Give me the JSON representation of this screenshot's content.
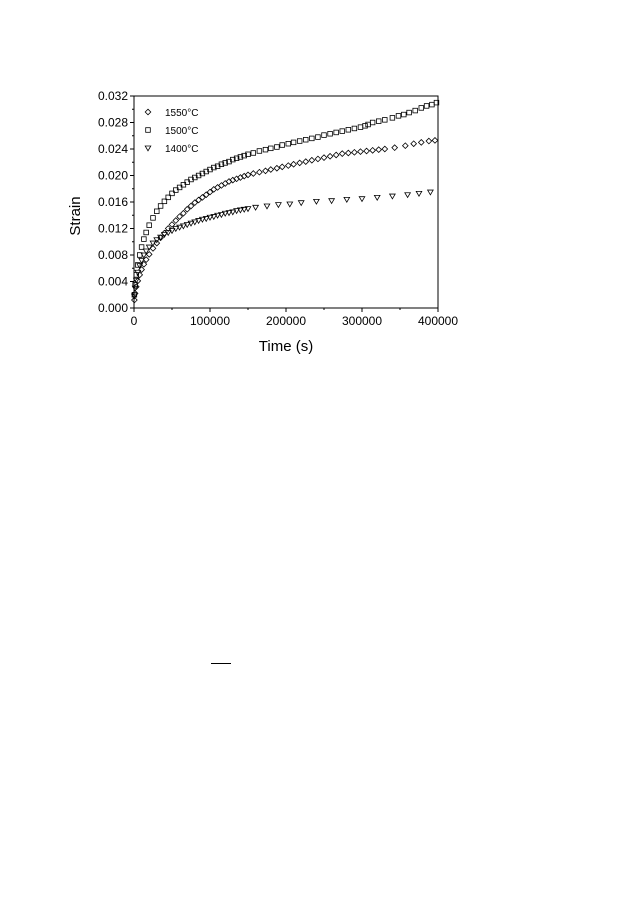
{
  "chart_data": {
    "type": "scatter",
    "title": "",
    "xlabel": "Time (s)",
    "ylabel": "Strain",
    "xlim": [
      0,
      400000
    ],
    "ylim": [
      0,
      0.032
    ],
    "x_ticks": [
      0,
      100000,
      200000,
      300000,
      400000
    ],
    "x_tick_labels": [
      "0",
      "100000",
      "200000",
      "300000",
      "400000"
    ],
    "y_ticks": [
      0,
      0.004,
      0.008,
      0.012,
      0.016,
      0.02,
      0.024,
      0.028,
      0.032
    ],
    "y_tick_labels": [
      "0.000",
      "0.004",
      "0.008",
      "0.012",
      "0.016",
      "0.020",
      "0.024",
      "0.028",
      "0.032"
    ],
    "grid": false,
    "legend_position": "top-left",
    "series": [
      {
        "name": "1550°C",
        "marker": "diamond",
        "points": [
          [
            500,
            0.0012
          ],
          [
            1500,
            0.0022
          ],
          [
            3000,
            0.0032
          ],
          [
            5000,
            0.0041
          ],
          [
            7500,
            0.005
          ],
          [
            10000,
            0.0058
          ],
          [
            13000,
            0.0066
          ],
          [
            16000,
            0.0073
          ],
          [
            20000,
            0.0081
          ],
          [
            25000,
            0.009
          ],
          [
            30000,
            0.0098
          ],
          [
            35000,
            0.0106
          ],
          [
            40000,
            0.0113
          ],
          [
            45000,
            0.012
          ],
          [
            50000,
            0.0126
          ],
          [
            55000,
            0.0132
          ],
          [
            60000,
            0.0138
          ],
          [
            65000,
            0.0143
          ],
          [
            70000,
            0.0149
          ],
          [
            75000,
            0.0154
          ],
          [
            80000,
            0.0159
          ],
          [
            85000,
            0.0163
          ],
          [
            90000,
            0.0167
          ],
          [
            95000,
            0.0171
          ],
          [
            100000,
            0.0175
          ],
          [
            105000,
            0.0179
          ],
          [
            110000,
            0.0182
          ],
          [
            115000,
            0.0185
          ],
          [
            120000,
            0.0188
          ],
          [
            125000,
            0.0191
          ],
          [
            130000,
            0.0193
          ],
          [
            135000,
            0.0195
          ],
          [
            140000,
            0.0197
          ],
          [
            145000,
            0.0199
          ],
          [
            150000,
            0.0201
          ],
          [
            157000,
            0.0203
          ],
          [
            165000,
            0.0205
          ],
          [
            173000,
            0.0207
          ],
          [
            180000,
            0.0209
          ],
          [
            188000,
            0.0211
          ],
          [
            195000,
            0.0213
          ],
          [
            203000,
            0.0215
          ],
          [
            210000,
            0.0217
          ],
          [
            218000,
            0.0219
          ],
          [
            226000,
            0.0221
          ],
          [
            234000,
            0.0223
          ],
          [
            242000,
            0.0225
          ],
          [
            250000,
            0.0227
          ],
          [
            258000,
            0.0229
          ],
          [
            266000,
            0.0231
          ],
          [
            274000,
            0.0233
          ],
          [
            282000,
            0.0234
          ],
          [
            290000,
            0.0235
          ],
          [
            298000,
            0.0236
          ],
          [
            306000,
            0.0237
          ],
          [
            314000,
            0.0238
          ],
          [
            322000,
            0.0239
          ],
          [
            330000,
            0.024
          ],
          [
            343000,
            0.0242
          ],
          [
            357000,
            0.0245
          ],
          [
            368000,
            0.0248
          ],
          [
            378000,
            0.025
          ],
          [
            388000,
            0.0252
          ],
          [
            396000,
            0.0253
          ]
        ]
      },
      {
        "name": "1500°C",
        "marker": "square",
        "points": [
          [
            500,
            0.002
          ],
          [
            1500,
            0.0035
          ],
          [
            3000,
            0.005
          ],
          [
            5000,
            0.0065
          ],
          [
            7500,
            0.008
          ],
          [
            10000,
            0.0092
          ],
          [
            13000,
            0.0104
          ],
          [
            16000,
            0.0114
          ],
          [
            20000,
            0.0125
          ],
          [
            25000,
            0.0136
          ],
          [
            30000,
            0.0146
          ],
          [
            35000,
            0.0154
          ],
          [
            40000,
            0.0161
          ],
          [
            45000,
            0.0167
          ],
          [
            50000,
            0.0173
          ],
          [
            55000,
            0.0178
          ],
          [
            60000,
            0.0182
          ],
          [
            65000,
            0.0186
          ],
          [
            70000,
            0.019
          ],
          [
            75000,
            0.0194
          ],
          [
            80000,
            0.0197
          ],
          [
            85000,
            0.02
          ],
          [
            90000,
            0.0203
          ],
          [
            95000,
            0.0206
          ],
          [
            100000,
            0.0209
          ],
          [
            105000,
            0.0212
          ],
          [
            110000,
            0.0214
          ],
          [
            115000,
            0.0217
          ],
          [
            120000,
            0.0219
          ],
          [
            125000,
            0.0221
          ],
          [
            130000,
            0.0224
          ],
          [
            135000,
            0.0226
          ],
          [
            140000,
            0.0228
          ],
          [
            145000,
            0.023
          ],
          [
            150000,
            0.0232
          ],
          [
            157000,
            0.0234
          ],
          [
            165000,
            0.0237
          ],
          [
            173000,
            0.0239
          ],
          [
            180000,
            0.0241
          ],
          [
            188000,
            0.0243
          ],
          [
            195000,
            0.0246
          ],
          [
            203000,
            0.0248
          ],
          [
            210000,
            0.025
          ],
          [
            218000,
            0.0252
          ],
          [
            226000,
            0.0254
          ],
          [
            234000,
            0.0256
          ],
          [
            242000,
            0.0258
          ],
          [
            250000,
            0.0261
          ],
          [
            258000,
            0.0263
          ],
          [
            266000,
            0.0265
          ],
          [
            274000,
            0.0267
          ],
          [
            282000,
            0.0269
          ],
          [
            290000,
            0.0271
          ],
          [
            298000,
            0.0273
          ],
          [
            304000,
            0.0275
          ],
          [
            308000,
            0.0277
          ],
          [
            314000,
            0.028
          ],
          [
            322000,
            0.0282
          ],
          [
            330000,
            0.0284
          ],
          [
            340000,
            0.0287
          ],
          [
            348000,
            0.029
          ],
          [
            355000,
            0.0292
          ],
          [
            362000,
            0.0295
          ],
          [
            370000,
            0.0298
          ],
          [
            378000,
            0.0302
          ],
          [
            385000,
            0.0305
          ],
          [
            392000,
            0.0307
          ],
          [
            398000,
            0.031
          ]
        ]
      },
      {
        "name": "1400°C",
        "marker": "triangle-down",
        "points": [
          [
            500,
            0.0018
          ],
          [
            1500,
            0.003
          ],
          [
            3000,
            0.0042
          ],
          [
            5000,
            0.0054
          ],
          [
            7500,
            0.0064
          ],
          [
            10000,
            0.0072
          ],
          [
            13000,
            0.008
          ],
          [
            16000,
            0.0086
          ],
          [
            20000,
            0.0092
          ],
          [
            25000,
            0.0098
          ],
          [
            30000,
            0.0103
          ],
          [
            35000,
            0.0107
          ],
          [
            40000,
            0.0111
          ],
          [
            45000,
            0.0114
          ],
          [
            50000,
            0.0117
          ],
          [
            55000,
            0.012
          ],
          [
            60000,
            0.0122
          ],
          [
            65000,
            0.0124
          ],
          [
            70000,
            0.0126
          ],
          [
            75000,
            0.0128
          ],
          [
            80000,
            0.013
          ],
          [
            85000,
            0.0132
          ],
          [
            90000,
            0.0134
          ],
          [
            95000,
            0.0135
          ],
          [
            100000,
            0.0137
          ],
          [
            105000,
            0.0138
          ],
          [
            110000,
            0.014
          ],
          [
            115000,
            0.0141
          ],
          [
            120000,
            0.0143
          ],
          [
            125000,
            0.0144
          ],
          [
            130000,
            0.0145
          ],
          [
            135000,
            0.0147
          ],
          [
            140000,
            0.0148
          ],
          [
            145000,
            0.0149
          ],
          [
            150000,
            0.015
          ],
          [
            160000,
            0.0152
          ],
          [
            175000,
            0.0154
          ],
          [
            190000,
            0.0156
          ],
          [
            205000,
            0.0157
          ],
          [
            220000,
            0.0159
          ],
          [
            240000,
            0.0161
          ],
          [
            260000,
            0.0162
          ],
          [
            280000,
            0.0164
          ],
          [
            300000,
            0.0165
          ],
          [
            320000,
            0.0167
          ],
          [
            340000,
            0.0169
          ],
          [
            360000,
            0.0171
          ],
          [
            375000,
            0.0173
          ],
          [
            390000,
            0.0175
          ]
        ]
      }
    ]
  }
}
